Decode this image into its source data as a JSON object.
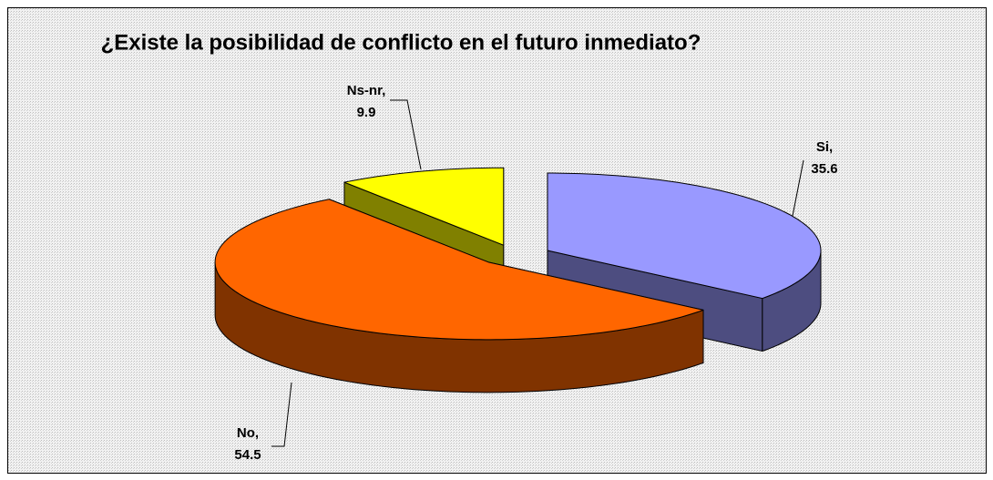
{
  "chart_data": {
    "type": "pie",
    "title": "¿Existe la posibilidad de conflicto en el futuro inmediato?",
    "categories": [
      "Si,",
      "No,",
      "Ns-nr,"
    ],
    "values": [
      35.6,
      54.5,
      9.9
    ],
    "colors": [
      "#9999ff",
      "#ff6600",
      "#ffff00"
    ]
  }
}
